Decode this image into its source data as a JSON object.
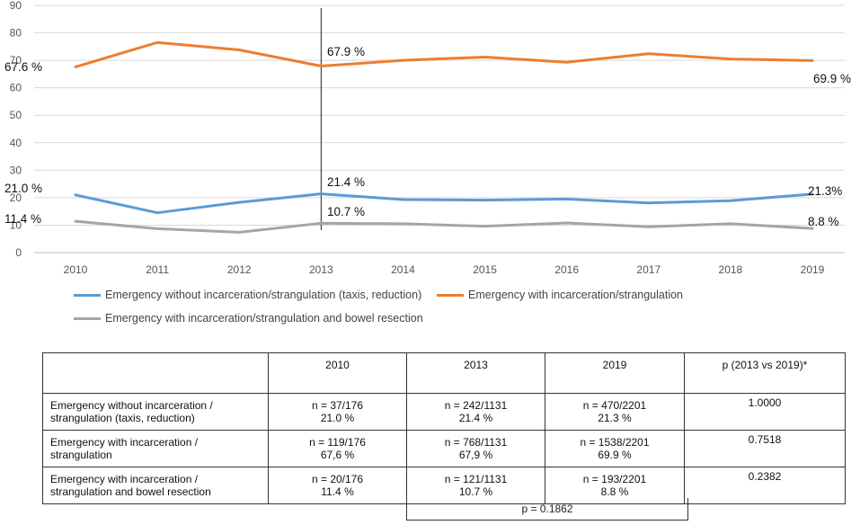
{
  "chart_data": {
    "type": "line",
    "categories": [
      "2010",
      "2011",
      "2012",
      "2013",
      "2014",
      "2015",
      "2016",
      "2017",
      "2018",
      "2019"
    ],
    "ylim": [
      0,
      90
    ],
    "yticks": [
      0,
      10,
      20,
      30,
      40,
      50,
      60,
      70,
      80,
      90
    ],
    "grid": true,
    "marker_line_at": "2013",
    "series": [
      {
        "name": "Emergency without incarceration/strangulation (taxis, reduction)",
        "color": "#5B9BD5",
        "values": [
          21.0,
          14.5,
          18.3,
          21.4,
          19.3,
          19.1,
          19.5,
          18.1,
          18.9,
          21.3
        ]
      },
      {
        "name": "Emergency with incarceration/strangulation",
        "color": "#ED7D31",
        "values": [
          67.6,
          76.5,
          73.8,
          67.9,
          70.0,
          71.2,
          69.3,
          72.4,
          70.5,
          69.9
        ]
      },
      {
        "name": "Emergency with incarceration/strangulation and bowel resection",
        "color": "#A5A5A5",
        "values": [
          11.4,
          8.7,
          7.4,
          10.7,
          10.5,
          9.6,
          10.8,
          9.4,
          10.5,
          8.8
        ]
      }
    ],
    "annotations": [
      {
        "series": 1,
        "index": 0,
        "text": "67.6 %"
      },
      {
        "series": 1,
        "index": 3,
        "text": "67.9 %"
      },
      {
        "series": 1,
        "index": 9,
        "text": "69.9 %"
      },
      {
        "series": 0,
        "index": 0,
        "text": "21.0 %"
      },
      {
        "series": 0,
        "index": 3,
        "text": "21.4 %"
      },
      {
        "series": 0,
        "index": 9,
        "text": "21.3%"
      },
      {
        "series": 2,
        "index": 0,
        "text": "11.4 %"
      },
      {
        "series": 2,
        "index": 3,
        "text": "10.7 %"
      },
      {
        "series": 2,
        "index": 9,
        "text": "8.8 %"
      }
    ]
  },
  "legend": {
    "items": [
      "Emergency without incarceration/strangulation (taxis, reduction)",
      "Emergency with incarceration/strangulation",
      "Emergency with incarceration/strangulation and bowel resection"
    ]
  },
  "table": {
    "headers": [
      "",
      "2010",
      "2013",
      "2019",
      "p (2013 vs 2019)*"
    ],
    "rows": [
      {
        "label_line1": "Emergency without incarceration /",
        "label_line2": "strangulation (taxis, reduction)",
        "c2010_n": "n = 37/176",
        "c2010_pct": "21.0 %",
        "c2013_n": "n = 242/1131",
        "c2013_pct": "21.4 %",
        "c2019_n": "n = 470/2201",
        "c2019_pct": "21.3 %",
        "p": "1.0000"
      },
      {
        "label_line1": "Emergency with incarceration /",
        "label_line2": "strangulation",
        "c2010_n": "n = 119/176",
        "c2010_pct": "67,6 %",
        "c2013_n": "n = 768/1131",
        "c2013_pct": "67,9 %",
        "c2019_n": "n = 1538/2201",
        "c2019_pct": "69.9 %",
        "p": "0.7518"
      },
      {
        "label_line1": "Emergency with incarceration /",
        "label_line2": "strangulation and bowel resection",
        "c2010_n": "n = 20/176",
        "c2010_pct": "11.4 %",
        "c2013_n": "n = 121/1131",
        "c2013_pct": "10.7 %",
        "c2019_n": "n = 193/2201",
        "c2019_pct": "8.8 %",
        "p": "0.2382"
      }
    ],
    "footer_p": "p = 0.1862"
  }
}
